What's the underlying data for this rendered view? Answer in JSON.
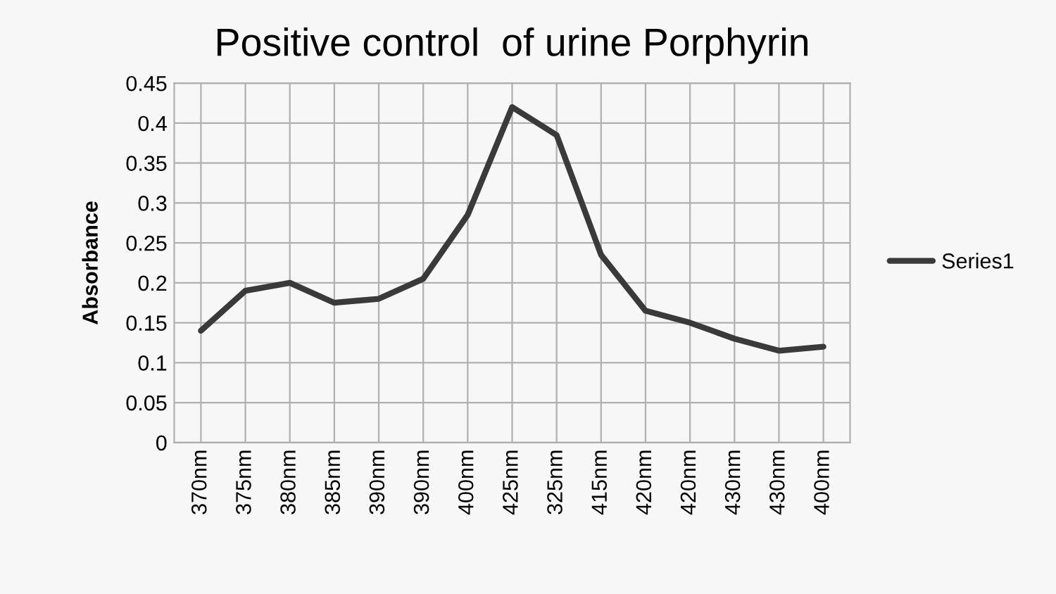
{
  "chart_data": {
    "type": "line",
    "title": "Positive control  of urine Porphyrin",
    "ylabel": "Absorbance",
    "categories": [
      "370nm",
      "375nm",
      "380nm",
      "385nm",
      "390nm",
      "390nm",
      "400nm",
      "425nm",
      "325nm",
      "415nm",
      "420nm",
      "420nm",
      "430nm",
      "430nm",
      "400nm"
    ],
    "series": [
      {
        "name": "Series1",
        "color": "#3a3a3a",
        "values": [
          0.14,
          0.19,
          0.2,
          0.175,
          0.18,
          0.205,
          0.285,
          0.42,
          0.385,
          0.235,
          0.165,
          0.15,
          0.13,
          0.115,
          0.12
        ]
      }
    ],
    "ylim": [
      0,
      0.45
    ],
    "yticks": [
      0,
      0.05,
      0.1,
      0.15,
      0.2,
      0.25,
      0.3,
      0.35,
      0.4,
      0.45
    ],
    "grid": true,
    "legend": "right",
    "marker": "none",
    "line_style": "solid"
  }
}
